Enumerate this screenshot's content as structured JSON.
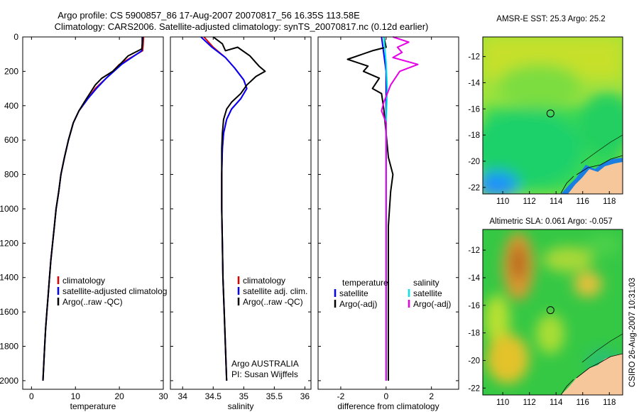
{
  "title_line1": "Argo profile: CS 5900857_86 17-Aug-2007 20070817_56 16.35S 113.58E",
  "title_line2": "Climatology: CARS2006. Satellite-adjusted climatology: synTS_20070817.nc (0.12d earlier)",
  "side_label": "CSIRO 26-Aug-2007 10:31:03",
  "colors": {
    "clim": "#e00000",
    "sat": "#0000ff",
    "argo": "#000000",
    "sal_sat": "#00e5e5",
    "sal_argo": "#e600e6",
    "land": "#f5c79a"
  },
  "chart_data": [
    {
      "type": "line",
      "xlabel": "temperature",
      "ylim": [
        2050,
        0
      ],
      "xlim": [
        -2,
        30
      ],
      "xticks": [
        0,
        10,
        20,
        30
      ],
      "yticks": [
        0,
        200,
        400,
        600,
        800,
        1000,
        1200,
        1400,
        1600,
        1800,
        2000
      ],
      "legend": [
        "climatology",
        "satellite-adjusted climatolog",
        "Argo(..raw -QC)"
      ],
      "series": [
        {
          "name": "climatology",
          "color": "#e00000",
          "points": [
            [
              25.5,
              0
            ],
            [
              25.4,
              50
            ],
            [
              25.3,
              80
            ],
            [
              20,
              160
            ],
            [
              17,
              240
            ],
            [
              14.5,
              300
            ],
            [
              12.8,
              360
            ],
            [
              10.8,
              430
            ],
            [
              9.5,
              500
            ],
            [
              8.4,
              600
            ],
            [
              7.5,
              700
            ],
            [
              6.7,
              800
            ],
            [
              6.2,
              900
            ],
            [
              5.6,
              1000
            ],
            [
              5.2,
              1100
            ],
            [
              4.8,
              1200
            ],
            [
              4.4,
              1300
            ],
            [
              4.1,
              1400
            ],
            [
              3.8,
              1500
            ],
            [
              3.5,
              1600
            ],
            [
              3.2,
              1700
            ],
            [
              3,
              1800
            ],
            [
              2.8,
              1900
            ],
            [
              2.6,
              2000
            ]
          ]
        },
        {
          "name": "satellite-adjusted climatolog",
          "color": "#0000ff",
          "points": [
            [
              25.3,
              0
            ],
            [
              25.2,
              50
            ],
            [
              25.1,
              80
            ],
            [
              20.5,
              160
            ],
            [
              17,
              240
            ],
            [
              14.8,
              300
            ],
            [
              12.8,
              360
            ],
            [
              10.8,
              430
            ],
            [
              9.5,
              500
            ],
            [
              8.4,
              600
            ],
            [
              7.5,
              700
            ],
            [
              6.7,
              800
            ],
            [
              6.2,
              900
            ],
            [
              5.6,
              1000
            ],
            [
              5.2,
              1100
            ],
            [
              4.8,
              1200
            ],
            [
              4.4,
              1300
            ],
            [
              4.1,
              1400
            ],
            [
              3.8,
              1500
            ],
            [
              3.5,
              1600
            ],
            [
              3.2,
              1700
            ],
            [
              3,
              1800
            ],
            [
              2.8,
              1900
            ],
            [
              2.6,
              2000
            ]
          ]
        },
        {
          "name": "Argo(..raw -QC)",
          "color": "#000000",
          "points": [
            [
              25.2,
              0
            ],
            [
              25.2,
              40
            ],
            [
              25.1,
              70
            ],
            [
              22,
              110
            ],
            [
              20.5,
              150
            ],
            [
              18.5,
              200
            ],
            [
              16,
              240
            ],
            [
              14.5,
              280
            ],
            [
              13.5,
              320
            ],
            [
              12,
              380
            ],
            [
              10.8,
              430
            ],
            [
              9.5,
              500
            ],
            [
              8.4,
              600
            ],
            [
              7.5,
              700
            ],
            [
              6.7,
              800
            ],
            [
              6.2,
              900
            ],
            [
              5.6,
              1000
            ],
            [
              5.2,
              1100
            ],
            [
              4.8,
              1200
            ],
            [
              4.4,
              1300
            ],
            [
              4.1,
              1400
            ],
            [
              3.8,
              1500
            ],
            [
              3.5,
              1600
            ],
            [
              3.2,
              1700
            ],
            [
              3,
              1800
            ],
            [
              2.8,
              1900
            ],
            [
              2.6,
              2000
            ]
          ]
        }
      ]
    },
    {
      "type": "line",
      "xlabel": "salinity",
      "ylim": [
        2050,
        0
      ],
      "xlim": [
        33.8,
        36.1
      ],
      "xticks": [
        34,
        34.5,
        35,
        35.5,
        36
      ],
      "yticks": [
        0,
        200,
        400,
        600,
        800,
        1000,
        1200,
        1400,
        1600,
        1800,
        2000
      ],
      "legend": [
        "climatology",
        "satellite adj. clim.",
        "Argo(..raw -QC)"
      ],
      "annotation": [
        "Argo AUSTRALIA",
        "PI: Susan Wijffels"
      ],
      "series": [
        {
          "name": "climatology",
          "color": "#e00000",
          "points": [
            [
              34.35,
              0
            ],
            [
              34.5,
              60
            ],
            [
              34.7,
              120
            ],
            [
              34.85,
              180
            ],
            [
              35.0,
              250
            ],
            [
              35.05,
              300
            ],
            [
              34.95,
              360
            ],
            [
              34.8,
              420
            ],
            [
              34.72,
              480
            ],
            [
              34.67,
              560
            ],
            [
              34.65,
              650
            ],
            [
              34.64,
              800
            ],
            [
              34.64,
              1000
            ],
            [
              34.65,
              1200
            ],
            [
              34.66,
              1400
            ],
            [
              34.68,
              1600
            ],
            [
              34.7,
              1800
            ],
            [
              34.72,
              2000
            ]
          ]
        },
        {
          "name": "satellite adj. clim.",
          "color": "#0000ff",
          "points": [
            [
              34.3,
              0
            ],
            [
              34.48,
              60
            ],
            [
              34.7,
              120
            ],
            [
              34.85,
              180
            ],
            [
              35.0,
              250
            ],
            [
              35.05,
              300
            ],
            [
              34.95,
              360
            ],
            [
              34.8,
              420
            ],
            [
              34.72,
              480
            ],
            [
              34.67,
              560
            ],
            [
              34.65,
              650
            ],
            [
              34.64,
              800
            ],
            [
              34.64,
              1000
            ],
            [
              34.65,
              1200
            ],
            [
              34.66,
              1400
            ],
            [
              34.68,
              1600
            ],
            [
              34.7,
              1800
            ],
            [
              34.72,
              2000
            ]
          ]
        },
        {
          "name": "Argo(..raw -QC)",
          "color": "#000000",
          "points": [
            [
              34.5,
              0
            ],
            [
              34.65,
              40
            ],
            [
              34.7,
              80
            ],
            [
              34.9,
              60
            ],
            [
              35.1,
              110
            ],
            [
              35.25,
              170
            ],
            [
              35.35,
              200
            ],
            [
              35.2,
              230
            ],
            [
              35.05,
              280
            ],
            [
              34.95,
              330
            ],
            [
              34.8,
              380
            ],
            [
              34.72,
              420
            ],
            [
              34.67,
              480
            ],
            [
              34.65,
              560
            ],
            [
              34.64,
              650
            ],
            [
              34.64,
              800
            ],
            [
              34.64,
              1000
            ],
            [
              34.65,
              1200
            ],
            [
              34.66,
              1400
            ],
            [
              34.68,
              1600
            ],
            [
              34.7,
              1800
            ],
            [
              34.72,
              2000
            ]
          ]
        }
      ]
    },
    {
      "type": "line",
      "xlabel": "difference from climatology",
      "ylim": [
        2050,
        0
      ],
      "xlim": [
        -3,
        3.2
      ],
      "xticks": [
        -2,
        0,
        2
      ],
      "yticks": [
        0,
        200,
        400,
        600,
        800,
        1000,
        1200,
        1400,
        1600,
        1800,
        2000
      ],
      "legend_left_title": "temperature",
      "legend_right_title": "salinity",
      "legend": [
        "satellite",
        "Argo(-adj)",
        "satellite",
        "Argo(-adj)"
      ],
      "series": [
        {
          "name": "satellite",
          "group": "temperature",
          "color": "#0000ff",
          "points": [
            [
              -0.2,
              0
            ],
            [
              -0.1,
              100
            ],
            [
              0,
              200
            ],
            [
              0,
              400
            ],
            [
              0,
              2000
            ]
          ]
        },
        {
          "name": "Argo(-adj)",
          "group": "temperature",
          "color": "#000000",
          "points": [
            [
              -0.1,
              0
            ],
            [
              0,
              60
            ],
            [
              -0.6,
              80
            ],
            [
              -1.7,
              130
            ],
            [
              -0.8,
              170
            ],
            [
              -1.0,
              200
            ],
            [
              -0.3,
              240
            ],
            [
              -0.6,
              300
            ],
            [
              -0.2,
              330
            ],
            [
              -0.1,
              420
            ],
            [
              0.1,
              700
            ],
            [
              0.3,
              800
            ],
            [
              0.2,
              900
            ],
            [
              0.1,
              1100
            ],
            [
              0.1,
              1400
            ],
            [
              0.1,
              1700
            ],
            [
              0.1,
              2000
            ]
          ]
        },
        {
          "name": "satellite",
          "group": "salinity",
          "color": "#00e5e5",
          "points": [
            [
              -0.1,
              0
            ],
            [
              0,
              150
            ],
            [
              0.05,
              300
            ],
            [
              0,
              500
            ],
            [
              0,
              2000
            ]
          ]
        },
        {
          "name": "Argo(-adj)",
          "group": "salinity",
          "color": "#e600e6",
          "points": [
            [
              0.3,
              0
            ],
            [
              1.0,
              30
            ],
            [
              0.5,
              60
            ],
            [
              0.7,
              90
            ],
            [
              0.3,
              120
            ],
            [
              1.4,
              160
            ],
            [
              0.6,
              200
            ],
            [
              0.2,
              280
            ],
            [
              -0.1,
              380
            ],
            [
              -0.2,
              430
            ],
            [
              0,
              500
            ],
            [
              0,
              1000
            ],
            [
              0,
              2000
            ]
          ]
        }
      ]
    },
    {
      "type": "heatmap",
      "title": "AMSR-E SST: 25.3 Argo: 25.2",
      "xlim": [
        108.5,
        119
      ],
      "ylim": [
        -22.5,
        -10.5
      ],
      "xticks": [
        110,
        112,
        114,
        116,
        118
      ],
      "yticks": [
        -12,
        -14,
        -16,
        -18,
        -20,
        -22
      ],
      "marker": [
        113.58,
        -16.35
      ]
    },
    {
      "type": "heatmap",
      "title": "Altimetric SLA: 0.061 Argo: -0.057",
      "xlim": [
        108.5,
        119
      ],
      "ylim": [
        -22.5,
        -10.5
      ],
      "xticks": [
        110,
        112,
        114,
        116,
        118
      ],
      "yticks": [
        -12,
        -14,
        -16,
        -18,
        -20,
        -22
      ],
      "marker": [
        113.58,
        -16.35
      ]
    }
  ]
}
